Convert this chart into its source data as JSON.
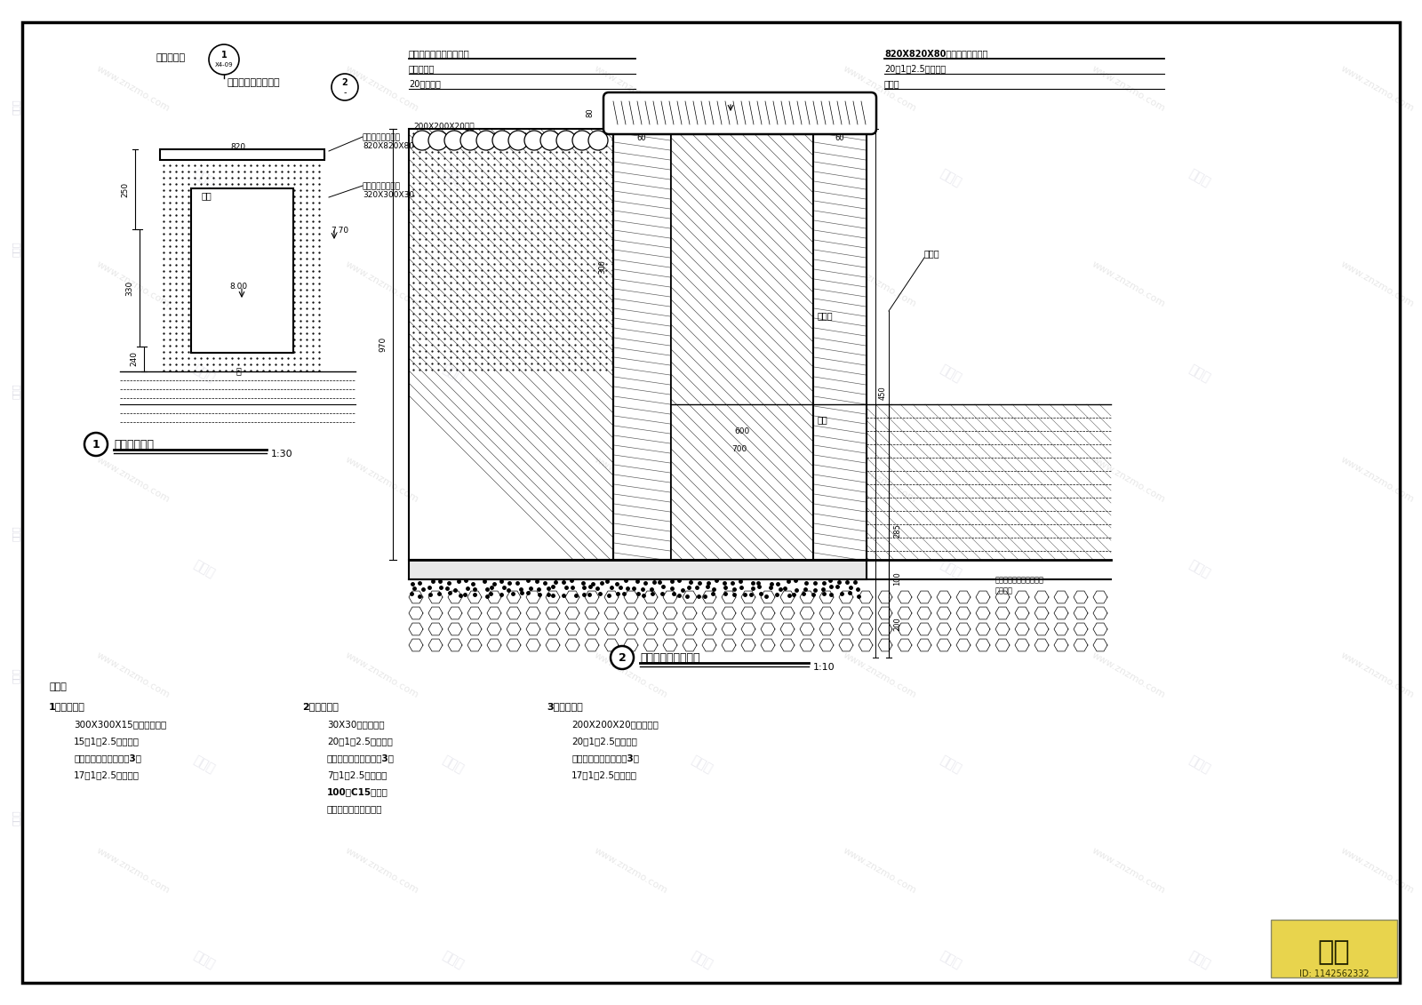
{
  "bg_color": "#ffffff",
  "border_color": "#000000",
  "line_color": "#000000",
  "page_width": 16.0,
  "page_height": 11.31,
  "notes": {
    "header": "说明：",
    "method1_title": "1、做法一：",
    "method1_items": [
      "300X300X15黄锈石基枝面",
      "15厚1：2.5水泥砂浆",
      "聚氨脂防水涂料刷两遍3厚",
      "17厚1：2.5水泥砂浆"
    ],
    "method2_title": "2、做法三：",
    "method2_items": [
      "30X30玻璃马赛克",
      "20厚1：2.5水泥砂浆",
      "聚氨脂防水涂料刷两遍3厚",
      "7厚1：2.5水泥砂浆",
      "100厚C15混凝土",
      "膨胀珍珠岩泡沫混凝土"
    ],
    "method3_title": "3、做法四：",
    "method3_items": [
      "200X200X20麻石斜格铺",
      "20厚1：2.5水泥砂浆",
      "聚氨脂防水涂料刷两遍3厚",
      "17厚1：2.5水泥砂浆"
    ]
  }
}
